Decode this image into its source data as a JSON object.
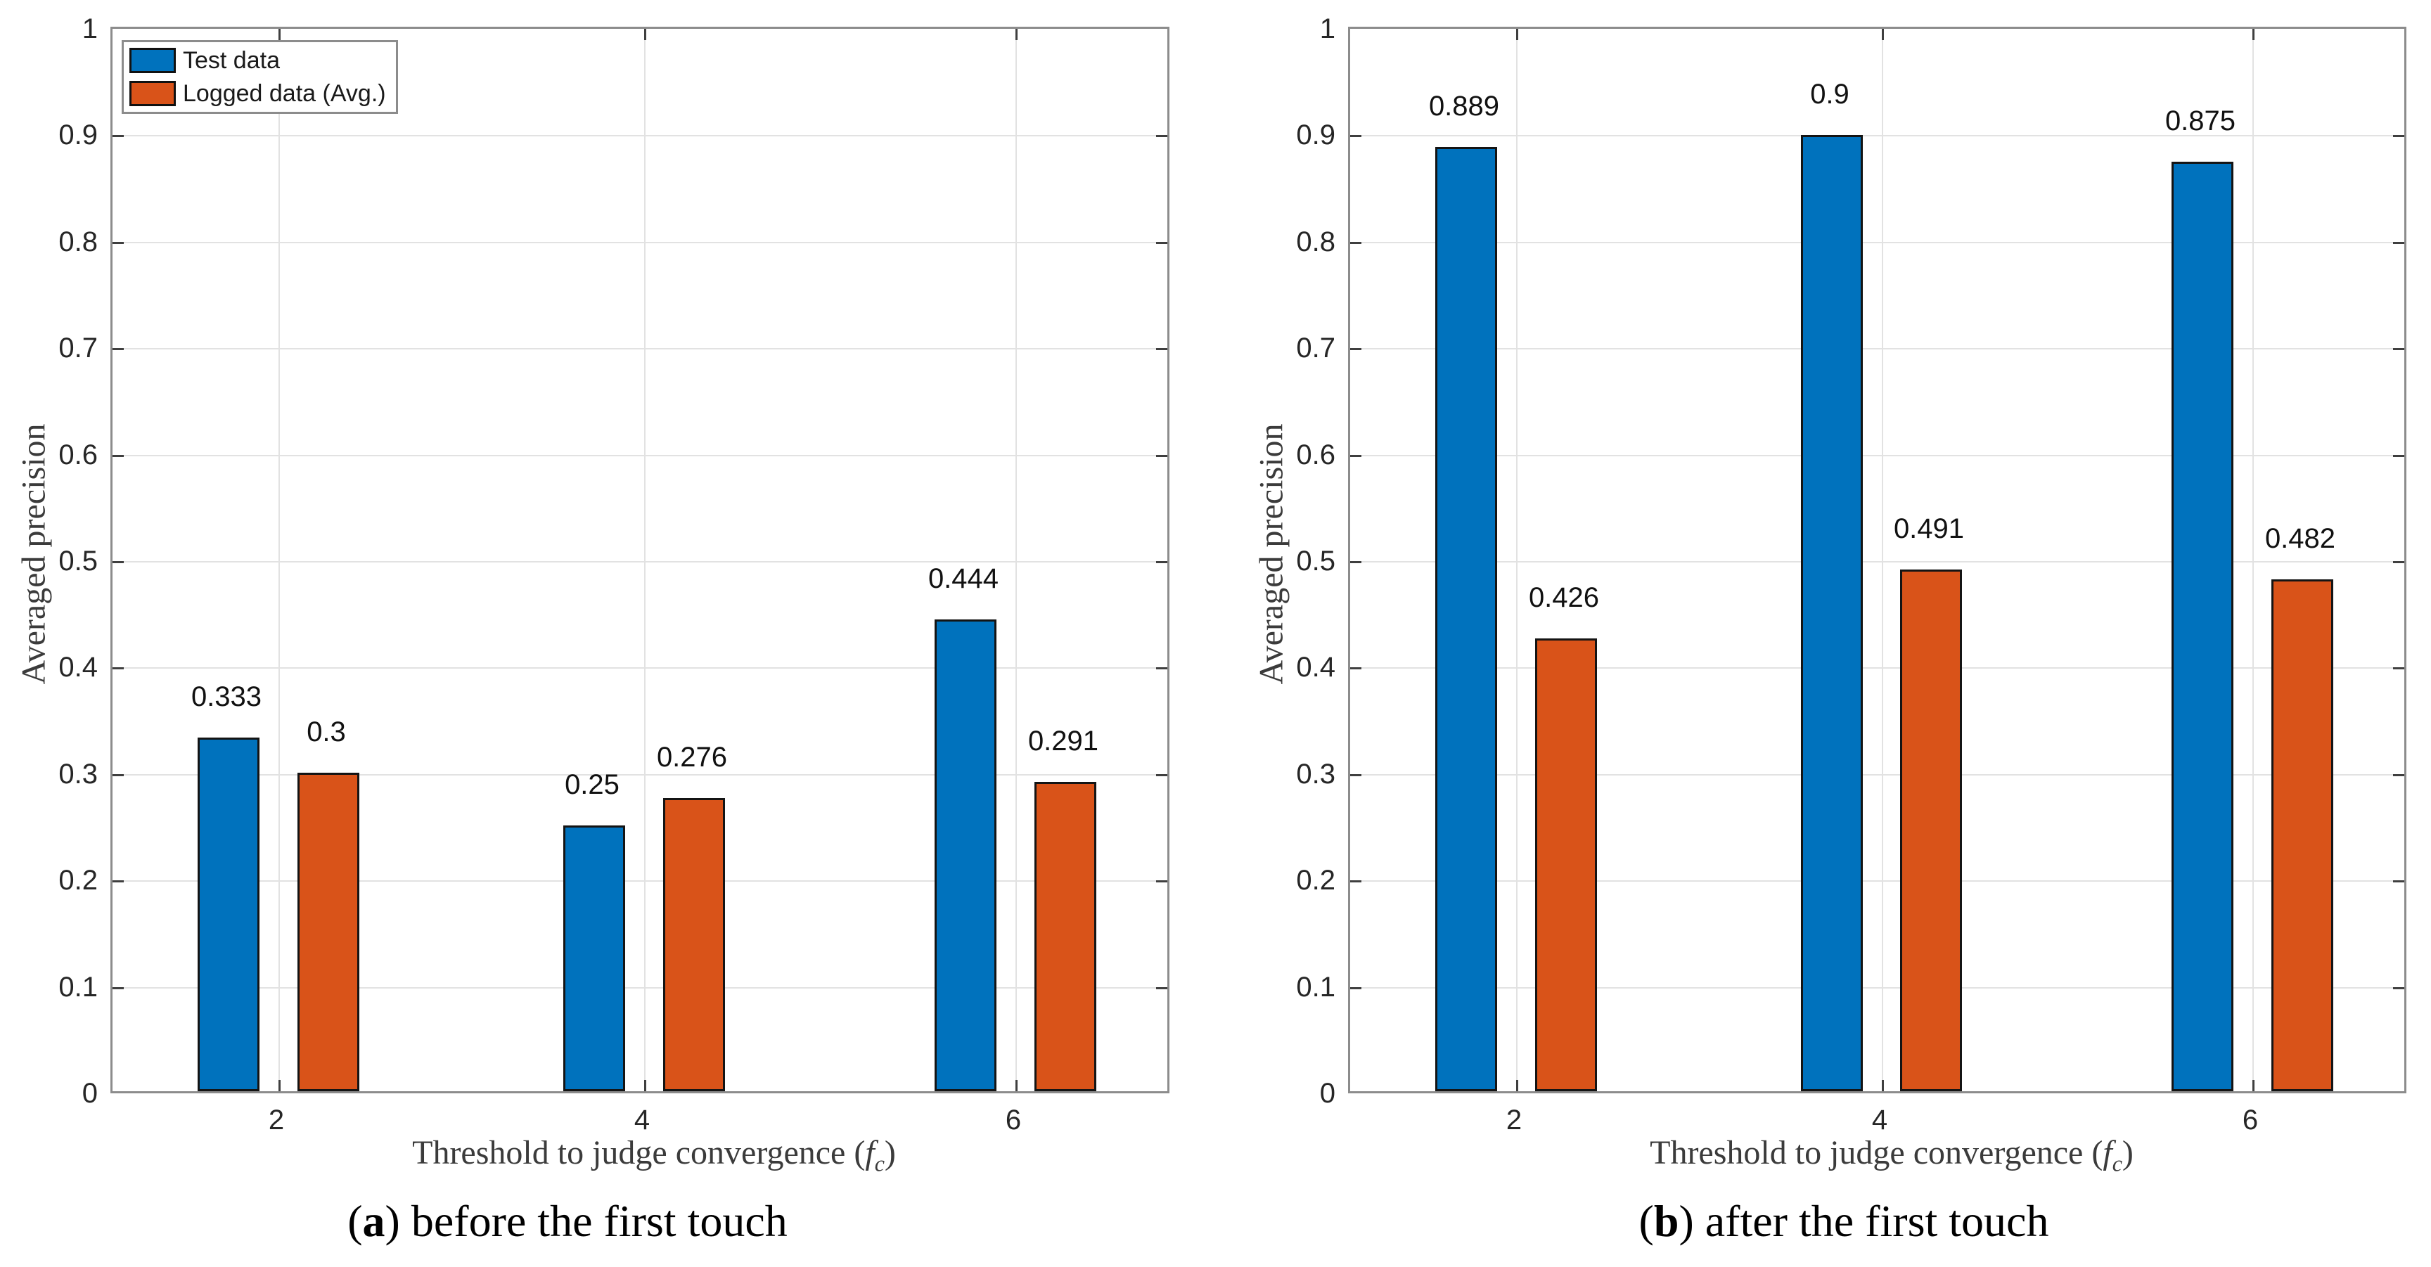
{
  "figure": {
    "background": "#ffffff",
    "colors": {
      "axis_box": "#8c8c8c",
      "gridline": "#e2e2e2",
      "tick_mark": "#3f3f3f",
      "bar_edge": "#141414",
      "text": "#262626"
    }
  },
  "legend": {
    "items": [
      {
        "label": "Test data",
        "color": "#0072BD"
      },
      {
        "label": "Logged data (Avg.)",
        "color": "#D95319"
      }
    ]
  },
  "chart_data": [
    {
      "id": "a",
      "type": "bar",
      "caption": {
        "pre": "(",
        "letter": "a",
        "post": ") before the first touch"
      },
      "ylabel": "Averaged precision",
      "xlabel": {
        "text": "Threshold to judge convergence (",
        "fvar": "f",
        "fsub": "c",
        "close": ")"
      },
      "categories": [
        "2",
        "4",
        "6"
      ],
      "series": [
        {
          "name": "Test data",
          "color": "#0072BD",
          "values": [
            0.333,
            0.25,
            0.444
          ],
          "labels": [
            "0.333",
            "0.25",
            "0.444"
          ]
        },
        {
          "name": "Logged data (Avg.)",
          "color": "#D95319",
          "values": [
            0.3,
            0.276,
            0.291
          ],
          "labels": [
            "0.3",
            "0.276",
            "0.291"
          ]
        }
      ],
      "ylim": [
        0,
        1
      ],
      "ytick_labels": [
        "0",
        "0.1",
        "0.2",
        "0.3",
        "0.4",
        "0.5",
        "0.6",
        "0.7",
        "0.8",
        "0.9",
        "1"
      ],
      "grid": true,
      "legend_position": "northwest"
    },
    {
      "id": "b",
      "type": "bar",
      "caption": {
        "pre": "(",
        "letter": "b",
        "post": ") after the first touch"
      },
      "ylabel": "Averaged precision",
      "xlabel": {
        "text": "Threshold to judge convergence (",
        "fvar": "f",
        "fsub": "c",
        "close": ")"
      },
      "categories": [
        "2",
        "4",
        "6"
      ],
      "series": [
        {
          "name": "Test data",
          "color": "#0072BD",
          "values": [
            0.889,
            0.9,
            0.875
          ],
          "labels": [
            "0.889",
            "0.9",
            "0.875"
          ]
        },
        {
          "name": "Logged data (Avg.)",
          "color": "#D95319",
          "values": [
            0.426,
            0.491,
            0.482
          ],
          "labels": [
            "0.426",
            "0.491",
            "0.482"
          ]
        }
      ],
      "ylim": [
        0,
        1
      ],
      "ytick_labels": [
        "0",
        "0.1",
        "0.2",
        "0.3",
        "0.4",
        "0.5",
        "0.6",
        "0.7",
        "0.8",
        "0.9",
        "1"
      ],
      "grid": true,
      "legend_position": null
    }
  ]
}
